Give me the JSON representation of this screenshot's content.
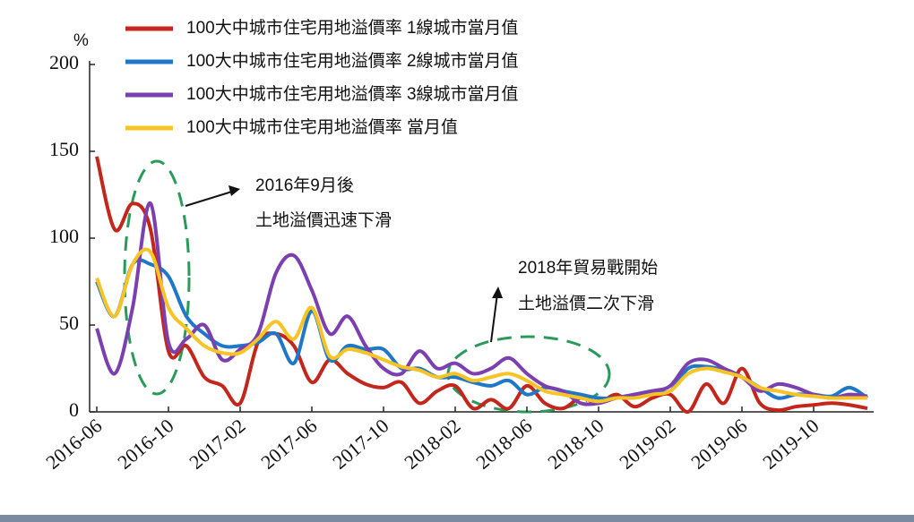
{
  "chart_data": {
    "type": "line",
    "y_label": "%",
    "categories": [
      "2016-06",
      null,
      null,
      null,
      "2016-10",
      null,
      null,
      null,
      "2017-02",
      null,
      null,
      null,
      "2017-06",
      null,
      null,
      null,
      "2017-10",
      null,
      null,
      null,
      "2018-02",
      null,
      null,
      null,
      "2018-06",
      null,
      null,
      null,
      "2018-10",
      null,
      null,
      null,
      "2019-02",
      null,
      null,
      null,
      "2019-06",
      null,
      null,
      null,
      "2019-10",
      null,
      null,
      null
    ],
    "series": [
      {
        "name": "100大中城市住宅用地溢價率 1線城市當月值",
        "color": "#c3261b",
        "values": [
          147,
          105,
          120,
          105,
          35,
          38,
          20,
          15,
          5,
          40,
          45,
          38,
          17,
          30,
          22,
          16,
          14,
          17,
          5,
          12,
          15,
          2,
          7,
          2,
          15,
          5,
          2,
          8,
          5,
          10,
          3,
          8,
          10,
          0,
          16,
          5,
          25,
          5,
          1,
          3,
          4,
          5,
          4,
          2
        ]
      },
      {
        "name": "100大中城市住宅用地溢價率 2線城市當月值",
        "color": "#1f77c8",
        "values": [
          75,
          55,
          85,
          85,
          78,
          55,
          45,
          38,
          38,
          40,
          45,
          28,
          58,
          30,
          38,
          36,
          36,
          25,
          25,
          20,
          20,
          17,
          15,
          18,
          10,
          14,
          12,
          10,
          8,
          8,
          10,
          12,
          12,
          25,
          26,
          24,
          20,
          14,
          8,
          10,
          10,
          9,
          14,
          8
        ]
      },
      {
        "name": "100大中城市住宅用地溢價率 3線城市當月值",
        "color": "#7b3fb0",
        "values": [
          48,
          22,
          60,
          120,
          40,
          42,
          50,
          30,
          36,
          45,
          80,
          90,
          70,
          45,
          55,
          38,
          25,
          22,
          35,
          25,
          28,
          22,
          25,
          31,
          22,
          15,
          12,
          5,
          5,
          8,
          10,
          12,
          15,
          28,
          30,
          25,
          20,
          12,
          16,
          14,
          10,
          8,
          10,
          9
        ]
      },
      {
        "name": "100大中城市住宅用地溢價率 當月值",
        "color": "#f7c325",
        "values": [
          77,
          55,
          85,
          92,
          60,
          48,
          38,
          34,
          34,
          42,
          52,
          42,
          60,
          32,
          36,
          34,
          30,
          26,
          24,
          20,
          22,
          18,
          20,
          22,
          18,
          12,
          10,
          8,
          6,
          8,
          8,
          10,
          12,
          22,
          25,
          23,
          20,
          14,
          12,
          10,
          9,
          8,
          8,
          8
        ]
      }
    ],
    "ylim": [
      0,
      200
    ],
    "yticks": [
      0,
      50,
      100,
      150,
      200
    ],
    "annotations": [
      {
        "lines": [
          "2016年9月後",
          "土地溢價迅速下滑"
        ]
      },
      {
        "lines": [
          "2018年貿易戰開始",
          "土地溢價二次下滑"
        ]
      }
    ]
  }
}
